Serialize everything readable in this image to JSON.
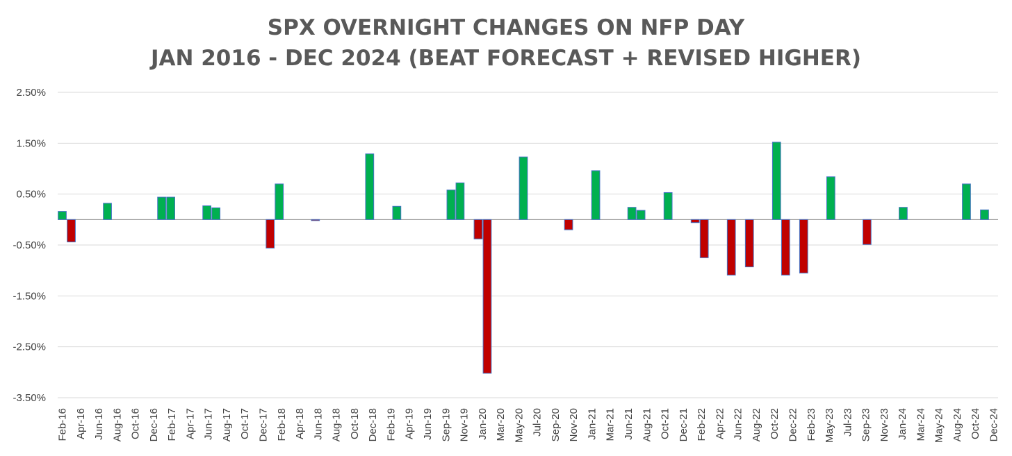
{
  "chart_data": {
    "type": "bar",
    "title": [
      "SPX OVERNIGHT CHANGES ON NFP DAY",
      "JAN 2016 - DEC 2024 (BEAT FORECAST + REVISED HIGHER)"
    ],
    "xlabel": "",
    "ylabel": "",
    "ylim": [
      -3.5,
      2.5
    ],
    "yticks": [
      "2.50%",
      "1.50%",
      "0.50%",
      "-0.50%",
      "-1.50%",
      "-2.50%",
      "-3.50%"
    ],
    "ytick_values": [
      2.5,
      1.5,
      0.5,
      -0.5,
      -1.5,
      -2.5,
      -3.5
    ],
    "xtick_labels": [
      "Feb-16",
      "Apr-16",
      "Jun-16",
      "Aug-16",
      "Oct-16",
      "Dec-16",
      "Feb-17",
      "Apr-17",
      "Jun-17",
      "Aug-17",
      "Oct-17",
      "Dec-17",
      "Feb-18",
      "Apr-18",
      "Jun-18",
      "Aug-18",
      "Oct-18",
      "Dec-18",
      "Feb-19",
      "Apr-19",
      "Jun-19",
      "Sep-19",
      "Nov-19",
      "Jan-20",
      "Mar-20",
      "May-20",
      "Jul-20",
      "Sep-20",
      "Nov-20",
      "Jan-21",
      "Mar-21",
      "Jun-21",
      "Aug-21",
      "Oct-21",
      "Dec-21",
      "Feb-22",
      "Apr-22",
      "Jun-22",
      "Aug-22",
      "Oct-22",
      "Dec-22",
      "Feb-23",
      "May-23",
      "Jul-23",
      "Sep-23",
      "Nov-23",
      "Jan-24",
      "Mar-24",
      "May-24",
      "Aug-24",
      "Oct-24",
      "Dec-24"
    ],
    "bar_count": 104,
    "positive_color": "#00b050",
    "negative_color": "#c00000",
    "bar_outline_color": "#4472c4",
    "grid": true,
    "bars": [
      {
        "slot": 0,
        "value": 0.16
      },
      {
        "slot": 1,
        "value": -0.44
      },
      {
        "slot": 5,
        "value": 0.32
      },
      {
        "slot": 11,
        "value": 0.44
      },
      {
        "slot": 12,
        "value": 0.44
      },
      {
        "slot": 16,
        "value": 0.27
      },
      {
        "slot": 17,
        "value": 0.23
      },
      {
        "slot": 23,
        "value": -0.56
      },
      {
        "slot": 24,
        "value": 0.7
      },
      {
        "slot": 28,
        "value": -0.02
      },
      {
        "slot": 34,
        "value": 1.29
      },
      {
        "slot": 37,
        "value": 0.26
      },
      {
        "slot": 43,
        "value": 0.58
      },
      {
        "slot": 44,
        "value": 0.72
      },
      {
        "slot": 46,
        "value": -0.38
      },
      {
        "slot": 47,
        "value": -3.02
      },
      {
        "slot": 51,
        "value": 1.23
      },
      {
        "slot": 56,
        "value": -0.2
      },
      {
        "slot": 59,
        "value": 0.96
      },
      {
        "slot": 63,
        "value": 0.24
      },
      {
        "slot": 64,
        "value": 0.18
      },
      {
        "slot": 67,
        "value": 0.53
      },
      {
        "slot": 70,
        "value": -0.06
      },
      {
        "slot": 71,
        "value": -0.75
      },
      {
        "slot": 74,
        "value": -1.09
      },
      {
        "slot": 76,
        "value": -0.93
      },
      {
        "slot": 79,
        "value": 1.52
      },
      {
        "slot": 80,
        "value": -1.09
      },
      {
        "slot": 82,
        "value": -1.05
      },
      {
        "slot": 85,
        "value": 0.84
      },
      {
        "slot": 89,
        "value": -0.49
      },
      {
        "slot": 93,
        "value": 0.24
      },
      {
        "slot": 100,
        "value": 0.7
      },
      {
        "slot": 102,
        "value": 0.19
      }
    ]
  }
}
